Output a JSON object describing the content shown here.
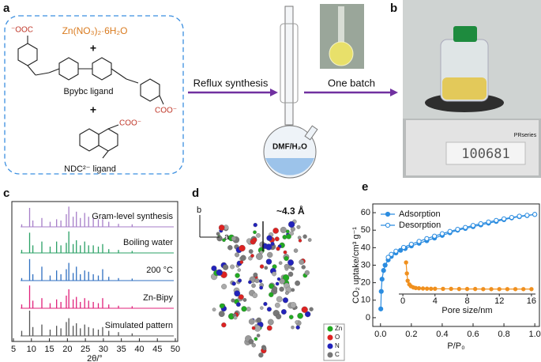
{
  "panel_labels": [
    "a",
    "b",
    "c",
    "d",
    "e"
  ],
  "panel_a": {
    "reagent": "Zn(NO₃)₂·6H₂O",
    "plus_1": "+",
    "ligand_1": "Bpybc ligand",
    "plus_2": "+",
    "ligand_2": "NDC²⁻ ligand",
    "carboxylates": [
      "⁻OOC",
      "COO⁻",
      "COO⁻"
    ],
    "arrow_1": "Reflux synthesis",
    "solvent": "DMF/H₂O",
    "arrow_2": "One batch"
  },
  "panel_b": {
    "brand": "PRseries",
    "reading": "100681"
  },
  "panel_d": {
    "axis_b": "b",
    "axis_a": "a",
    "pore": "~4.3 Å",
    "legend": [
      "Zn",
      "O",
      "N",
      "C"
    ]
  },
  "chart_data": [
    {
      "type": "spectrum",
      "xlabel": "2θ/°",
      "xlim": [
        5,
        50
      ],
      "xticks": [
        5,
        10,
        15,
        20,
        25,
        30,
        35,
        40,
        45,
        50
      ],
      "x": [
        7.3,
        9.5,
        10.4,
        12.9,
        15.2,
        17.0,
        18.2,
        19.7,
        20.4,
        21.6,
        22.5,
        23.6,
        24.8,
        25.9,
        27.2,
        28.6,
        29.8,
        31.5,
        34.2,
        38.0
      ],
      "series": [
        {
          "name": "Simulated pattern",
          "color": "#555555",
          "values": [
            20,
            100,
            35,
            45,
            25,
            40,
            30,
            55,
            70,
            40,
            50,
            30,
            45,
            35,
            30,
            25,
            35,
            20,
            15,
            10
          ]
        },
        {
          "name": "Zn-Bipy",
          "color": "#e0207a",
          "values": [
            15,
            90,
            30,
            40,
            20,
            35,
            25,
            50,
            75,
            35,
            45,
            25,
            40,
            30,
            25,
            20,
            40,
            15,
            10,
            8
          ]
        },
        {
          "name": "200 °C",
          "color": "#2f6fc0",
          "values": [
            10,
            85,
            25,
            55,
            20,
            40,
            25,
            45,
            70,
            30,
            55,
            25,
            40,
            35,
            25,
            20,
            45,
            15,
            10,
            8
          ]
        },
        {
          "name": "Boiling water",
          "color": "#2aa065",
          "values": [
            12,
            80,
            30,
            45,
            25,
            45,
            30,
            40,
            85,
            35,
            50,
            30,
            45,
            30,
            30,
            25,
            35,
            15,
            12,
            8
          ]
        },
        {
          "name": "Gram-level synthesis",
          "color": "#a67ec8",
          "values": [
            10,
            75,
            25,
            35,
            20,
            30,
            25,
            50,
            80,
            40,
            60,
            35,
            55,
            40,
            35,
            30,
            30,
            20,
            12,
            10
          ]
        }
      ]
    },
    {
      "type": "line",
      "ylabel": "CO₂ uptake/cm³ g⁻¹",
      "xlabel": "P/P₀",
      "xlim": [
        -0.05,
        1.03
      ],
      "ylim": [
        -5,
        65
      ],
      "xticks": [
        {
          "value": 0,
          "label": "0.0"
        },
        {
          "value": 0.2,
          "label": "0.2"
        },
        {
          "value": 0.4,
          "label": "0.4"
        },
        {
          "value": 0.6,
          "label": "0.6"
        },
        {
          "value": 0.8,
          "label": "0.8"
        },
        {
          "value": 1,
          "label": "1.0"
        }
      ],
      "yticks": [
        0,
        10,
        20,
        30,
        40,
        50,
        60
      ],
      "legend": "upper left",
      "series": [
        {
          "name": "Adsorption",
          "color": "#2b8ce0",
          "marker": "filled",
          "x": [
            0.002,
            0.005,
            0.01,
            0.02,
            0.03,
            0.05,
            0.07,
            0.1,
            0.13,
            0.16,
            0.2,
            0.25,
            0.3,
            0.35,
            0.4,
            0.45,
            0.5,
            0.55,
            0.6,
            0.65,
            0.7,
            0.75,
            0.8,
            0.85,
            0.9,
            0.95,
            1.0
          ],
          "values": [
            5,
            15,
            22,
            27,
            30,
            33,
            35,
            37,
            38.5,
            39.5,
            41,
            42.5,
            44,
            45.5,
            47,
            48.5,
            50,
            51,
            52,
            53,
            54,
            55,
            56,
            57,
            57.7,
            58.3,
            59
          ]
        },
        {
          "name": "Desorption",
          "color": "#2b8ce0",
          "marker": "open",
          "x": [
            1.0,
            0.95,
            0.9,
            0.85,
            0.8,
            0.75,
            0.7,
            0.65,
            0.6,
            0.55,
            0.5,
            0.45,
            0.4,
            0.35,
            0.3,
            0.25,
            0.2,
            0.15,
            0.1,
            0.07,
            0.05
          ],
          "values": [
            59,
            58.5,
            58,
            57.3,
            56.5,
            55.6,
            54.7,
            53.7,
            52.7,
            51.6,
            50.5,
            49.3,
            48,
            46.6,
            45.2,
            43.6,
            42,
            40.2,
            38,
            36.2,
            34.5
          ]
        }
      ],
      "inset": {
        "type": "line",
        "xlabel": "Pore size/nm",
        "xlim": [
          -0.5,
          16.5
        ],
        "xticks": [
          0,
          4,
          8,
          12,
          16
        ],
        "ylim": [
          10,
          36
        ],
        "series": [
          {
            "color": "#f0901e",
            "x": [
              0.4,
              0.5,
              0.6,
              0.8,
              1,
              1.3,
              1.6,
              2,
              2.5,
              3,
              3.5,
              4,
              5,
              6,
              7,
              8,
              9,
              10,
              11,
              12,
              13,
              14,
              15,
              16
            ],
            "values": [
              34,
              25,
              19,
              16,
              14.5,
              13.5,
              13,
              12.8,
              12.6,
              12.5,
              12.4,
              12.4,
              12.3,
              12.3,
              12.2,
              12.2,
              12.2,
              12.1,
              12.1,
              12.1,
              12.1,
              12.1,
              12.1,
              12.1
            ]
          }
        ]
      }
    }
  ]
}
